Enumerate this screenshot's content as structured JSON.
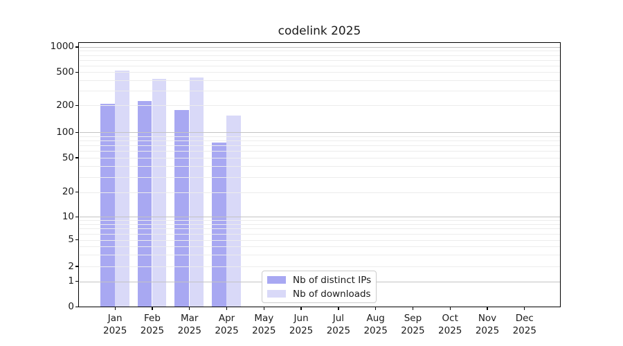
{
  "chart_data": {
    "type": "bar",
    "title": "codelink 2025",
    "year": "2025",
    "months": [
      "Jan",
      "Feb",
      "Mar",
      "Apr",
      "May",
      "Jun",
      "Jul",
      "Aug",
      "Sep",
      "Oct",
      "Nov",
      "Dec"
    ],
    "categories": [
      "Jan 2025",
      "Feb 2025",
      "Mar 2025",
      "Apr 2025",
      "May 2025",
      "Jun 2025",
      "Jul 2025",
      "Aug 2025",
      "Sep 2025",
      "Oct 2025",
      "Nov 2025",
      "Dec 2025"
    ],
    "series": [
      {
        "name": "Nb of distinct IPs",
        "color": "#a8a8f2",
        "values": [
          210,
          227,
          177,
          76,
          null,
          null,
          null,
          null,
          null,
          null,
          null,
          null
        ]
      },
      {
        "name": "Nb of downloads",
        "color": "#d9d9f8",
        "values": [
          525,
          415,
          430,
          154,
          null,
          null,
          null,
          null,
          null,
          null,
          null,
          null
        ]
      }
    ],
    "y_ticks": [
      0,
      1,
      2,
      5,
      10,
      20,
      50,
      100,
      200,
      500,
      1000
    ],
    "ylim": [
      0,
      1000
    ],
    "y_scale": "log-like with linear zero region",
    "grid": true,
    "legend_position": "lower center"
  },
  "colors": {
    "major_grid": "#c3c3c3",
    "minor_grid": "#ececec",
    "axis": "#000000",
    "legend_border": "#cccccc",
    "background": "#ffffff"
  }
}
